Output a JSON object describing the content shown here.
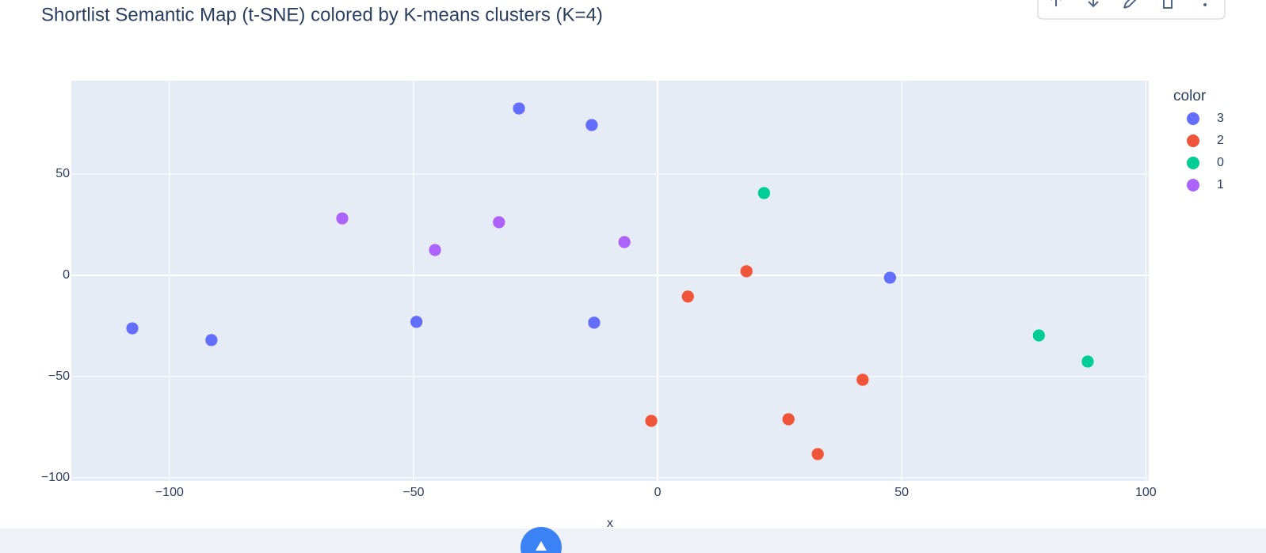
{
  "chart_data": {
    "type": "scatter",
    "title": "Shortlist Semantic Map (t-SNE) colored by K-means clusters (K=4)",
    "x_label": "x",
    "legend_title": "color",
    "legend_position": "right",
    "grid": true,
    "xlim": [
      -120.1,
      100.6
    ],
    "ylim": [
      -101.6,
      96.1
    ],
    "xticks": [
      {
        "value": -100,
        "label": "−100"
      },
      {
        "value": -50,
        "label": "−50"
      },
      0,
      50,
      100
    ],
    "yticks": [
      {
        "value": -100,
        "label": "−100"
      },
      {
        "value": -50,
        "label": "−50"
      },
      0,
      50
    ],
    "series": [
      {
        "name": "3",
        "color": "#636efa",
        "x": [
          -28.4,
          -13.5,
          -107.6,
          -91.4,
          -49.4,
          -13.0,
          47.6
        ],
        "y": [
          82.4,
          74.2,
          -26.2,
          -32.0,
          -23.0,
          -23.4,
          -1.2
        ]
      },
      {
        "name": "2",
        "color": "#ef553b",
        "x": [
          18.2,
          6.2,
          42.0,
          -1.3,
          26.8,
          32.8
        ],
        "y": [
          2.0,
          -10.5,
          -51.6,
          -71.9,
          -71.1,
          -88.3
        ]
      },
      {
        "name": "0",
        "color": "#00cc96",
        "x": [
          21.8,
          78.1,
          88.1
        ],
        "y": [
          40.6,
          -29.7,
          -42.6
        ]
      },
      {
        "name": "1",
        "color": "#ab63fa",
        "x": [
          -64.6,
          -32.5,
          -45.6,
          -6.8
        ],
        "y": [
          28.1,
          26.2,
          12.5,
          16.4
        ]
      }
    ]
  }
}
